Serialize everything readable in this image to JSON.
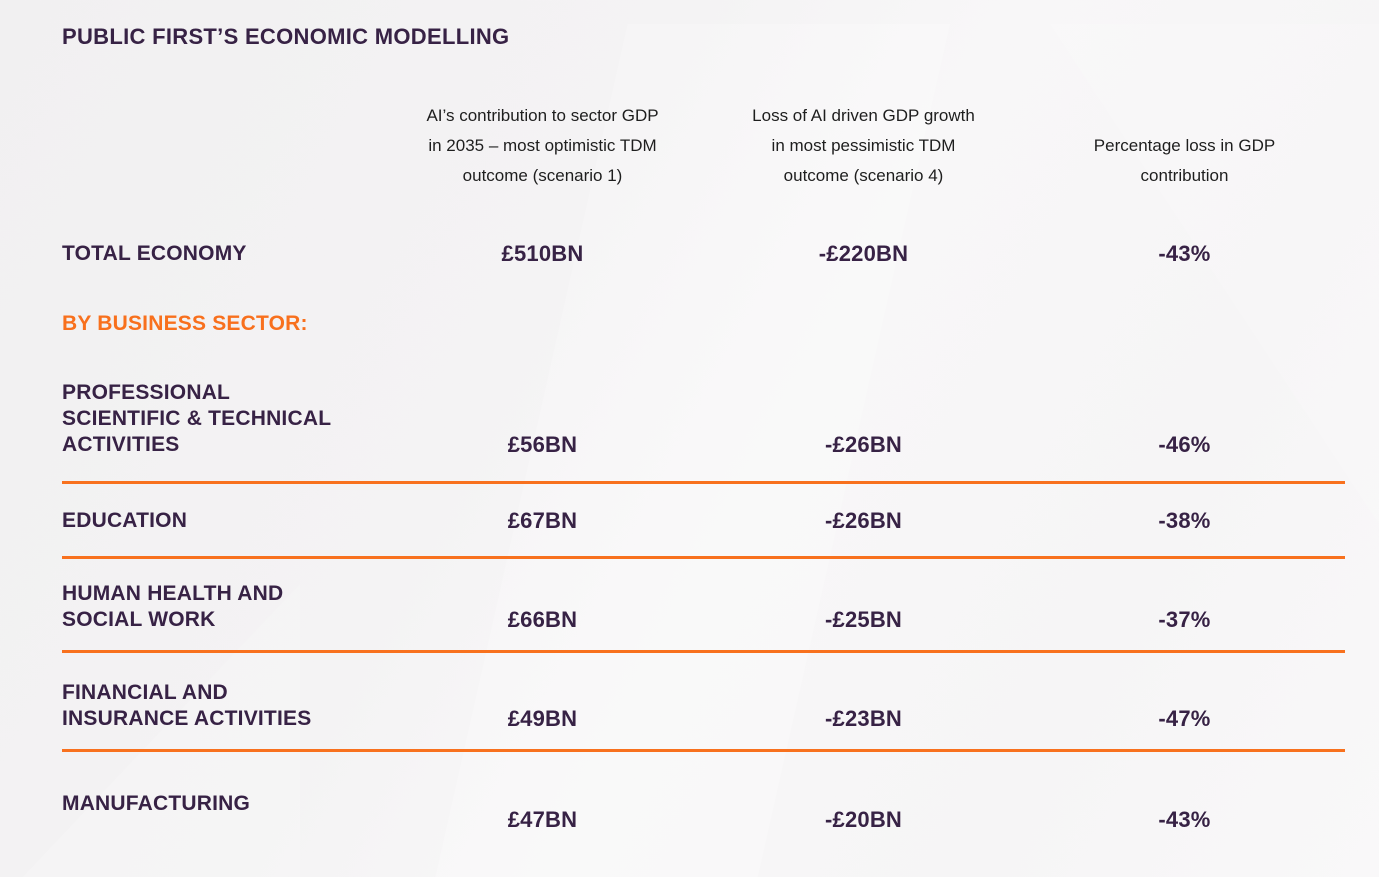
{
  "page": {
    "title": "PUBLIC FIRST’S ECONOMIC MODELLING",
    "section_heading": "BY BUSINESS SECTOR:"
  },
  "colors": {
    "heading_purple": "#372245",
    "accent_orange": "#f8701d",
    "divider_orange": "#f8711e",
    "header_text": "#1e1e1e",
    "background": "#f5f4f5"
  },
  "table": {
    "columns": [
      "AI’s contribution to sector GDP\nin 2035 – most optimistic TDM\noutcome (scenario 1)",
      "Loss of AI driven GDP growth\nin most pessimistic TDM\noutcome (scenario 4)",
      "Percentage loss in GDP\ncontribution"
    ],
    "total_row": {
      "label": "TOTAL ECONOMY",
      "values": [
        "£510BN",
        "-£220BN",
        "-43%"
      ]
    },
    "rows": [
      {
        "label": "PROFESSIONAL\nSCIENTIFIC & TECHNICAL\nACTIVITIES",
        "values": [
          "£56BN",
          "-£26BN",
          "-46%"
        ]
      },
      {
        "label": "EDUCATION",
        "values": [
          "£67BN",
          "-£26BN",
          "-38%"
        ]
      },
      {
        "label": "HUMAN HEALTH AND\nSOCIAL WORK",
        "values": [
          "£66BN",
          "-£25BN",
          "-37%"
        ]
      },
      {
        "label": "FINANCIAL AND\nINSURANCE ACTIVITIES",
        "values": [
          "£49BN",
          "-£23BN",
          "-47%"
        ]
      },
      {
        "label": "MANUFACTURING",
        "values": [
          "£47BN",
          "-£20BN",
          "-43%"
        ]
      }
    ]
  }
}
